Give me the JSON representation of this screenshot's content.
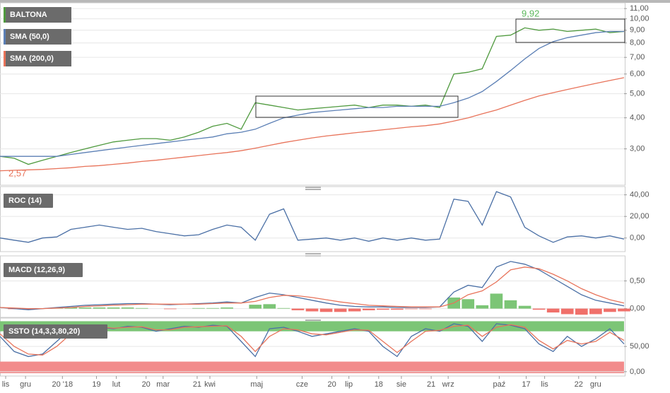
{
  "chart_data": [
    {
      "type": "line",
      "log_scale": true,
      "x": [
        0,
        1,
        2,
        3,
        4,
        5,
        6,
        7,
        8,
        9,
        10,
        11,
        12,
        13,
        14,
        15,
        16,
        17,
        18,
        19,
        20,
        21,
        22,
        23,
        24,
        25,
        26,
        27,
        28,
        29,
        30,
        31,
        32,
        33,
        34,
        35,
        36,
        37,
        38,
        39,
        40,
        41,
        42,
        43,
        44
      ],
      "xlim": [
        0,
        44
      ],
      "ylim": [
        2.2,
        11.3
      ],
      "yticks": [
        {
          "value": 3,
          "label": "3,00"
        },
        {
          "value": 4,
          "label": "4,00"
        },
        {
          "value": 5,
          "label": "5,00"
        },
        {
          "value": 6,
          "label": "6,00"
        },
        {
          "value": 7,
          "label": "7,00"
        },
        {
          "value": 8,
          "label": "8,00"
        },
        {
          "value": 9,
          "label": "9,00"
        },
        {
          "value": 10,
          "label": "10,00"
        },
        {
          "value": 11,
          "label": "11,00"
        }
      ],
      "series": [
        {
          "name": "BALTONA",
          "color": "#4f9a3e",
          "values": [
            2.8,
            2.75,
            2.6,
            2.7,
            2.8,
            2.9,
            3.0,
            3.1,
            3.2,
            3.25,
            3.3,
            3.3,
            3.25,
            3.35,
            3.5,
            3.7,
            3.8,
            3.6,
            4.6,
            4.5,
            4.4,
            4.3,
            4.35,
            4.4,
            4.45,
            4.5,
            4.4,
            4.5,
            4.5,
            4.45,
            4.5,
            4.4,
            6.0,
            6.1,
            6.3,
            8.5,
            8.6,
            9.2,
            9.0,
            9.1,
            8.9,
            9.0,
            9.1,
            8.8,
            8.9
          ]
        },
        {
          "name": "SMA (50,0)",
          "color": "#5b7fb5",
          "values": [
            2.8,
            2.8,
            2.8,
            2.8,
            2.8,
            2.85,
            2.9,
            2.95,
            3.0,
            3.05,
            3.1,
            3.15,
            3.2,
            3.25,
            3.3,
            3.35,
            3.45,
            3.5,
            3.6,
            3.8,
            4.0,
            4.1,
            4.2,
            4.25,
            4.3,
            4.35,
            4.4,
            4.4,
            4.45,
            4.45,
            4.45,
            4.45,
            4.6,
            4.8,
            5.1,
            5.6,
            6.2,
            6.9,
            7.6,
            8.1,
            8.4,
            8.6,
            8.8,
            8.9,
            8.9
          ]
        },
        {
          "name": "SMA (200,0)",
          "color": "#e8735a",
          "values": [
            2.45,
            2.46,
            2.47,
            2.48,
            2.5,
            2.52,
            2.55,
            2.57,
            2.6,
            2.63,
            2.67,
            2.7,
            2.74,
            2.78,
            2.82,
            2.86,
            2.9,
            2.95,
            3.02,
            3.1,
            3.18,
            3.25,
            3.32,
            3.38,
            3.43,
            3.48,
            3.53,
            3.58,
            3.63,
            3.68,
            3.72,
            3.78,
            3.88,
            4.0,
            4.15,
            4.3,
            4.5,
            4.7,
            4.9,
            5.05,
            5.2,
            5.35,
            5.5,
            5.65,
            5.8
          ]
        }
      ],
      "annotations": [
        {
          "label": "9,92",
          "value": 9.92,
          "color": "#5cb85c"
        },
        {
          "label": "2,57",
          "value": 2.57,
          "color": "#e8735a"
        }
      ]
    },
    {
      "type": "line",
      "title": "ROC (14)",
      "ylim": [
        -10,
        45
      ],
      "yticks": [
        {
          "value": 0,
          "label": "0,00"
        },
        {
          "value": 20,
          "label": "20,00"
        },
        {
          "value": 40,
          "label": "40,00"
        }
      ],
      "series": [
        {
          "color": "#4a6fa5",
          "values": [
            0,
            -2,
            -4,
            0,
            1,
            8,
            10,
            12,
            10,
            8,
            9,
            6,
            4,
            2,
            3,
            8,
            12,
            10,
            -2,
            22,
            27,
            -2,
            -1,
            0,
            -2,
            0,
            -3,
            0,
            -2,
            0,
            -2,
            -1,
            36,
            34,
            12,
            43,
            38,
            10,
            2,
            -4,
            1,
            2,
            0,
            2,
            -1
          ]
        }
      ]
    },
    {
      "type": "line",
      "title": "MACD (12,26,9)",
      "ylim": [
        -0.12,
        0.9
      ],
      "yticks": [
        {
          "value": 0,
          "label": "0,00"
        },
        {
          "value": 0.5,
          "label": "0,50"
        }
      ],
      "series": [
        {
          "color": "#4a6fa5",
          "values": [
            0.02,
            0,
            -0.02,
            0,
            0.02,
            0.04,
            0.06,
            0.07,
            0.08,
            0.09,
            0.09,
            0.08,
            0.07,
            0.08,
            0.09,
            0.1,
            0.12,
            0.1,
            0.2,
            0.28,
            0.25,
            0.2,
            0.15,
            0.1,
            0.06,
            0.04,
            0.03,
            0.03,
            0.02,
            0.02,
            0.02,
            0.03,
            0.3,
            0.42,
            0.38,
            0.75,
            0.85,
            0.8,
            0.7,
            0.55,
            0.4,
            0.25,
            0.15,
            0.1,
            0.05
          ]
        },
        {
          "color": "#e8735a",
          "values": [
            0.02,
            0.01,
            0,
            0,
            0.01,
            0.02,
            0.04,
            0.05,
            0.06,
            0.07,
            0.08,
            0.08,
            0.08,
            0.08,
            0.08,
            0.09,
            0.1,
            0.1,
            0.13,
            0.2,
            0.24,
            0.23,
            0.2,
            0.16,
            0.12,
            0.09,
            0.06,
            0.05,
            0.04,
            0.03,
            0.03,
            0.03,
            0.1,
            0.25,
            0.32,
            0.48,
            0.7,
            0.75,
            0.72,
            0.62,
            0.5,
            0.36,
            0.25,
            0.16,
            0.1
          ]
        }
      ],
      "histogram": {
        "positive_color": "#7cc576",
        "negative_color": "#f0706a",
        "values": [
          0,
          -0.01,
          -0.02,
          0,
          0.01,
          0.02,
          0.02,
          0.02,
          0.02,
          0.02,
          0.01,
          0,
          -0.01,
          0,
          0.01,
          0.01,
          0.02,
          0,
          0.07,
          0.08,
          0.01,
          -0.03,
          -0.05,
          -0.06,
          -0.06,
          -0.05,
          -0.03,
          -0.02,
          -0.02,
          -0.01,
          -0.01,
          0,
          0.2,
          0.17,
          0.06,
          0.27,
          0.15,
          0.05,
          -0.02,
          -0.07,
          -0.1,
          -0.11,
          -0.1,
          -0.06,
          -0.05
        ]
      }
    },
    {
      "type": "line",
      "title": "SSTO (14,3,3,80,20)",
      "ylim": [
        -3,
        102
      ],
      "yticks": [
        {
          "value": 0,
          "label": "0,00"
        },
        {
          "value": 50,
          "label": "50,00"
        }
      ],
      "bands": [
        {
          "from": 80,
          "to": 100,
          "color": "#7cc576"
        },
        {
          "from": -3,
          "to": 20,
          "color": "#f28b8b"
        }
      ],
      "series": [
        {
          "color": "#4a6fa5",
          "values": [
            70,
            40,
            30,
            35,
            60,
            85,
            90,
            88,
            85,
            90,
            88,
            80,
            85,
            90,
            88,
            92,
            90,
            60,
            30,
            85,
            88,
            80,
            70,
            75,
            80,
            85,
            80,
            50,
            30,
            70,
            85,
            80,
            95,
            90,
            60,
            95,
            92,
            85,
            55,
            40,
            70,
            50,
            65,
            85,
            55
          ]
        },
        {
          "color": "#e8735a",
          "values": [
            75,
            50,
            35,
            33,
            50,
            75,
            88,
            89,
            86,
            88,
            89,
            83,
            83,
            88,
            89,
            90,
            91,
            70,
            40,
            70,
            85,
            83,
            75,
            73,
            78,
            83,
            82,
            60,
            38,
            60,
            80,
            82,
            90,
            92,
            70,
            88,
            93,
            88,
            62,
            45,
            62,
            55,
            60,
            78,
            62
          ]
        }
      ],
      "xticks": [
        {
          "value": 0.4,
          "label": "lis"
        },
        {
          "value": 1.8,
          "label": "gru"
        },
        {
          "value": 4.4,
          "label": "20 '18"
        },
        {
          "value": 6.8,
          "label": "19"
        },
        {
          "value": 8.2,
          "label": "lut"
        },
        {
          "value": 10.3,
          "label": "20"
        },
        {
          "value": 11.5,
          "label": "mar"
        },
        {
          "value": 13.9,
          "label": "21"
        },
        {
          "value": 14.8,
          "label": "kwi"
        },
        {
          "value": 18.1,
          "label": "maj"
        },
        {
          "value": 21.3,
          "label": "cze"
        },
        {
          "value": 23.4,
          "label": "20"
        },
        {
          "value": 24.6,
          "label": "lip"
        },
        {
          "value": 26.7,
          "label": "18"
        },
        {
          "value": 28.3,
          "label": "sie"
        },
        {
          "value": 30.4,
          "label": "21"
        },
        {
          "value": 31.6,
          "label": "wrz"
        },
        {
          "value": 35.2,
          "label": "paź"
        },
        {
          "value": 37.1,
          "label": "17"
        },
        {
          "value": 38.4,
          "label": "lis"
        },
        {
          "value": 40.8,
          "label": "22"
        },
        {
          "value": 42.0,
          "label": "gru"
        }
      ]
    }
  ]
}
